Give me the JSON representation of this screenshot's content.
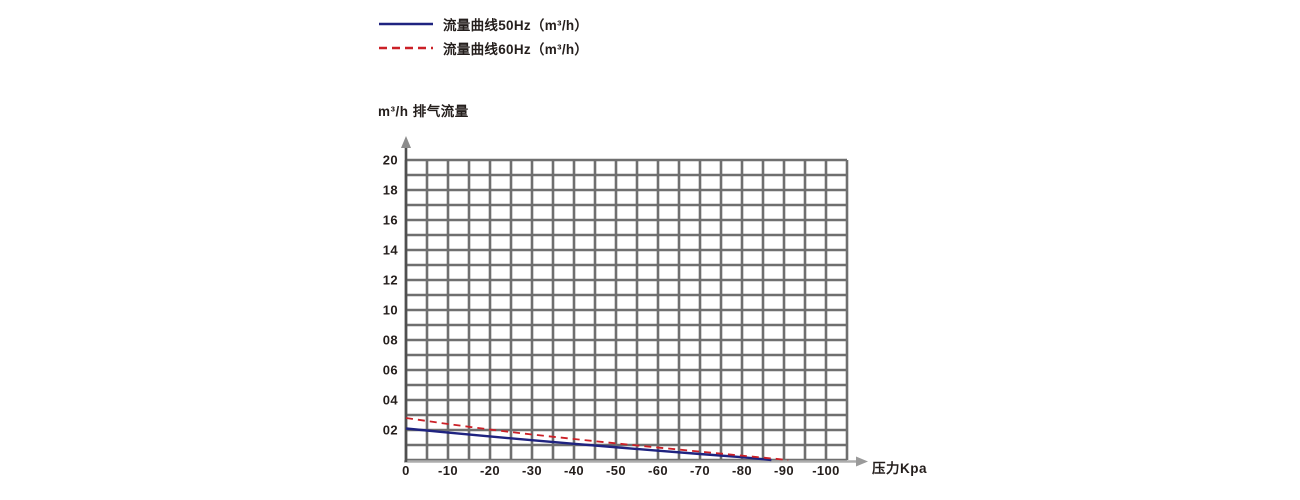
{
  "chart_data": {
    "type": "line",
    "title": "m³/h 排气流量",
    "xlabel": "压力Kpa",
    "ylabel": "m³/h",
    "xlim": [
      0,
      -105
    ],
    "ylim": [
      0,
      20
    ],
    "grid": {
      "on": true,
      "x_step": 5,
      "y_step": 1
    },
    "legend_position": "top-left",
    "x_ticks": [
      0,
      -10,
      -20,
      -30,
      -40,
      -50,
      -60,
      -70,
      -80,
      -90,
      -100
    ],
    "x_tick_labels": [
      "0",
      "-10",
      "-20",
      "-30",
      "-40",
      "-50",
      "-60",
      "-70",
      "-80",
      "-90",
      "-100"
    ],
    "y_ticks": [
      2,
      4,
      6,
      8,
      10,
      12,
      14,
      16,
      18,
      20
    ],
    "y_tick_labels": [
      "02",
      "04",
      "06",
      "08",
      "10",
      "12",
      "14",
      "16",
      "18",
      "20"
    ],
    "series": [
      {
        "name": "流量曲线50Hz（m³/h）",
        "style": "solid",
        "color": "#1f2380",
        "points": [
          [
            0,
            2.1
          ],
          [
            -10,
            1.83
          ],
          [
            -20,
            1.57
          ],
          [
            -30,
            1.32
          ],
          [
            -40,
            1.08
          ],
          [
            -50,
            0.85
          ],
          [
            -60,
            0.62
          ],
          [
            -70,
            0.4
          ],
          [
            -80,
            0.19
          ],
          [
            -87,
            0
          ]
        ]
      },
      {
        "name": "流量曲线60Hz（m³/h）",
        "style": "dashed",
        "color": "#cb2027",
        "points": [
          [
            0,
            2.8
          ],
          [
            -10,
            2.4
          ],
          [
            -20,
            2.03
          ],
          [
            -30,
            1.7
          ],
          [
            -40,
            1.4
          ],
          [
            -50,
            1.11
          ],
          [
            -60,
            0.83
          ],
          [
            -70,
            0.56
          ],
          [
            -80,
            0.29
          ],
          [
            -91,
            0
          ]
        ]
      }
    ]
  }
}
